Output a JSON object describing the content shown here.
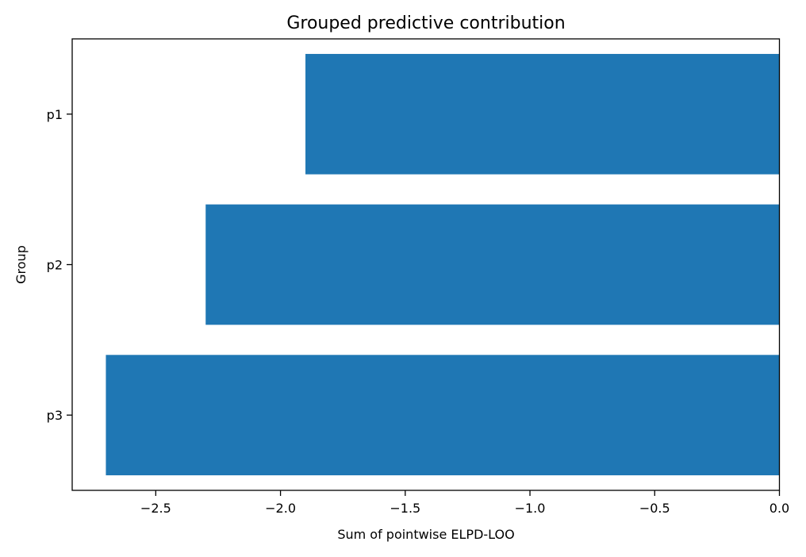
{
  "chart_data": {
    "type": "bar",
    "orientation": "horizontal",
    "title": "Grouped predictive contribution",
    "xlabel": "Sum of pointwise ELPD-LOO",
    "ylabel": "Group",
    "categories": [
      "p1",
      "p2",
      "p3"
    ],
    "values": [
      -1.9,
      -2.3,
      -2.7
    ],
    "xlim": [
      -2.835,
      0.0
    ],
    "xticks": [
      -2.5,
      -2.0,
      -1.5,
      -1.0,
      -0.5,
      0.0
    ],
    "xtick_labels": [
      "−2.5",
      "−2.0",
      "−1.5",
      "−1.0",
      "−0.5",
      "0.0"
    ],
    "bar_color": "#1f77b4",
    "grid": false,
    "legend": "none"
  }
}
